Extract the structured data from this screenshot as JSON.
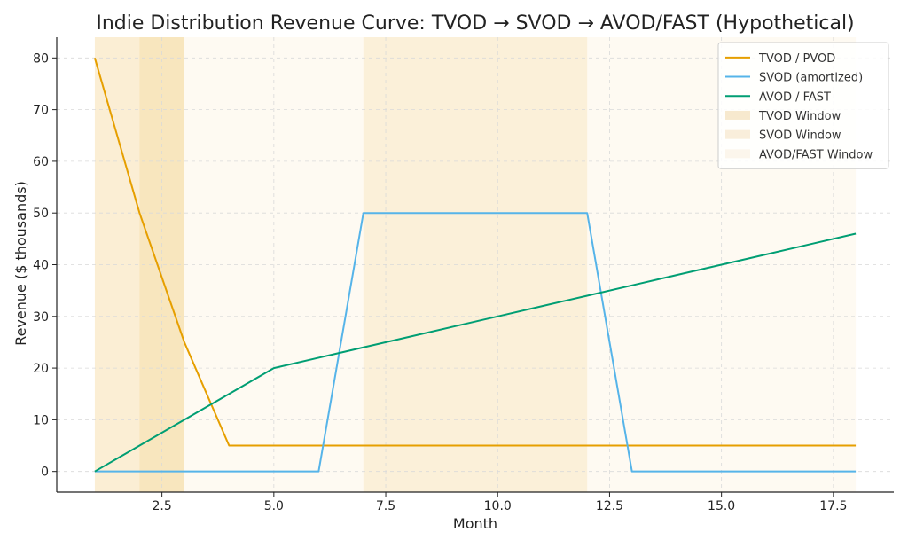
{
  "chart_data": {
    "type": "line",
    "title": "Indie Distribution Revenue Curve: TVOD → SVOD → AVOD/FAST (Hypothetical)",
    "xlabel": "Month",
    "ylabel": "Revenue ($ thousands)",
    "xlim": [
      0.15,
      18.85
    ],
    "ylim": [
      -4,
      84
    ],
    "grid": true,
    "legend_position": "top-right",
    "x_ticks": [
      2.5,
      5.0,
      7.5,
      10.0,
      12.5,
      15.0,
      17.5
    ],
    "x_tick_labels": [
      "2.5",
      "5.0",
      "7.5",
      "10.0",
      "12.5",
      "15.0",
      "17.5"
    ],
    "y_ticks": [
      0,
      10,
      20,
      30,
      40,
      50,
      60,
      70,
      80
    ],
    "y_tick_labels": [
      "0",
      "10",
      "20",
      "30",
      "40",
      "50",
      "60",
      "70",
      "80"
    ],
    "x": [
      1,
      2,
      3,
      4,
      5,
      6,
      7,
      8,
      9,
      10,
      11,
      12,
      13,
      14,
      15,
      16,
      17,
      18
    ],
    "series": [
      {
        "name": "TVOD / PVOD",
        "color": "#E69F00",
        "values": [
          80,
          50,
          25,
          5,
          5,
          5,
          5,
          5,
          5,
          5,
          5,
          5,
          5,
          5,
          5,
          5,
          5,
          5
        ]
      },
      {
        "name": "SVOD (amortized)",
        "color": "#56B4E9",
        "values": [
          0,
          0,
          0,
          0,
          0,
          0,
          50,
          50,
          50,
          50,
          50,
          50,
          0,
          0,
          0,
          0,
          0,
          0
        ]
      },
      {
        "name": "AVOD / FAST",
        "color": "#009E73",
        "values": [
          0,
          5,
          10,
          15,
          20,
          22,
          24,
          26,
          28,
          30,
          32,
          34,
          36,
          38,
          40,
          42,
          44,
          46
        ]
      }
    ],
    "windows": [
      {
        "name": "TVOD Window",
        "color": "#E69F00",
        "opacity": 0.12,
        "start": 1,
        "end": 3
      },
      {
        "name": "SVOD Window",
        "color": "#E69F00",
        "opacity": 0.1,
        "start": 2,
        "end": 3
      },
      {
        "name": "SVOD Window",
        "color": "#E69F00",
        "opacity": 0.1,
        "start": 7,
        "end": 12
      },
      {
        "name": "AVOD/FAST Window",
        "color": "#E69F00",
        "opacity": 0.05,
        "start": 1,
        "end": 18
      }
    ],
    "legend": [
      {
        "label": "TVOD / PVOD",
        "kind": "line",
        "color": "#E69F00"
      },
      {
        "label": "SVOD (amortized)",
        "kind": "line",
        "color": "#56B4E9"
      },
      {
        "label": "AVOD / FAST",
        "kind": "line",
        "color": "#009E73"
      },
      {
        "label": "TVOD Window",
        "kind": "patch",
        "color": "#F7E9CE"
      },
      {
        "label": "SVOD Window",
        "kind": "patch",
        "color": "#F9EEDB"
      },
      {
        "label": "AVOD/FAST Window",
        "kind": "patch",
        "color": "#FCF6EC"
      }
    ]
  }
}
